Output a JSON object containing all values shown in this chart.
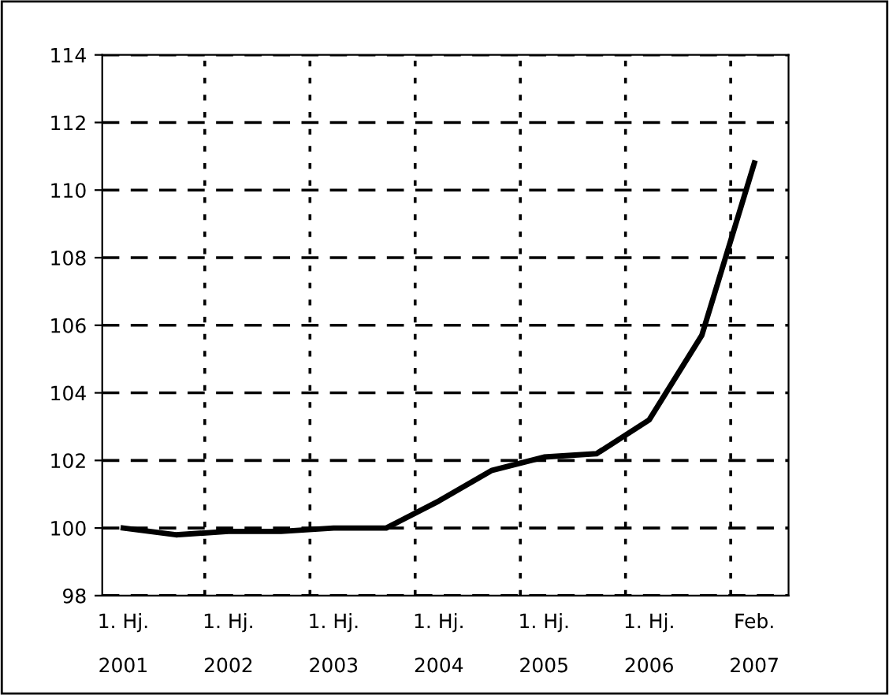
{
  "chart_data": {
    "type": "line",
    "categories": [
      "1. Hj.\n\n2001",
      null,
      "1. Hj.\n\n2002",
      null,
      "1. Hj.\n\n2003",
      null,
      "1. Hj.\n\n2004",
      null,
      "1. Hj.\n\n2005",
      null,
      "1. Hj.\n\n2006",
      null,
      "Feb.\n\n2007"
    ],
    "series": [
      {
        "color": "#000000",
        "values": [
          100,
          99.8,
          99.9,
          99.9,
          100,
          100,
          100.8,
          101.7,
          102.1,
          102.2,
          103.2,
          105.7,
          110.8
        ]
      }
    ],
    "ylim": [
      98,
      114
    ],
    "yticks": [
      98,
      100,
      102,
      104,
      106,
      108,
      110,
      112,
      114
    ],
    "grid": true,
    "legend": false,
    "marker": "none",
    "line_style": "solid"
  }
}
